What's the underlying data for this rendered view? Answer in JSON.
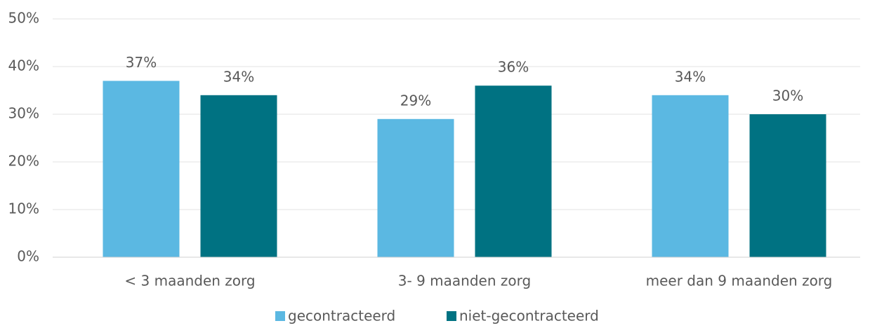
{
  "chart_data": {
    "type": "bar",
    "categories": [
      "< 3 maanden zorg",
      "3- 9 maanden zorg",
      "meer dan 9 maanden zorg"
    ],
    "series": [
      {
        "name": "gecontracteerd",
        "color": "#5bb8e2",
        "values": [
          37,
          29,
          34
        ],
        "value_labels": [
          "37%",
          "29%",
          "34%"
        ]
      },
      {
        "name": "niet-gecontracteerd",
        "color": "#007282",
        "values": [
          34,
          36,
          30
        ],
        "value_labels": [
          "34%",
          "36%",
          "30%"
        ]
      }
    ],
    "ylim": [
      0,
      50
    ],
    "yticks": [
      {
        "value": 0,
        "label": "0%"
      },
      {
        "value": 10,
        "label": "10%"
      },
      {
        "value": 20,
        "label": "20%"
      },
      {
        "value": 30,
        "label": "30%"
      },
      {
        "value": 40,
        "label": "40%"
      },
      {
        "value": 50,
        "label": "50%"
      }
    ],
    "grid": true,
    "legend": "bottom"
  }
}
